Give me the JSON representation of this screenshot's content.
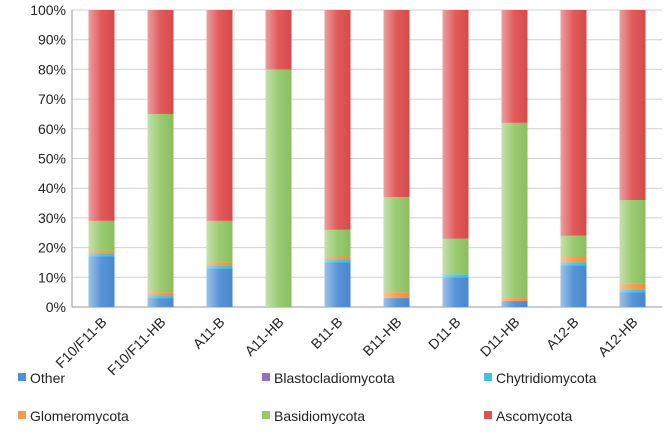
{
  "chart_data": {
    "type": "bar",
    "stacked": true,
    "percent": true,
    "title": "",
    "xlabel": "",
    "ylabel": "",
    "ylim": [
      0,
      100
    ],
    "y_ticks": [
      "0%",
      "10%",
      "20%",
      "30%",
      "40%",
      "50%",
      "60%",
      "70%",
      "80%",
      "90%",
      "100%"
    ],
    "categories": [
      "F10/F11-B",
      "F10/F11-HB",
      "A11-B",
      "A11-HB",
      "B11-B",
      "B11-HB",
      "D11-B",
      "D11-HB",
      "A12-B",
      "A12-HB"
    ],
    "grid": true,
    "legend_position": "bottom",
    "series": [
      {
        "name": "Other",
        "color": "#4f8fd6",
        "values": [
          17,
          3,
          13,
          0,
          15,
          3,
          10,
          2,
          14,
          5
        ]
      },
      {
        "name": "Blastocladiomycota",
        "color": "#8f72c2",
        "values": [
          0,
          0,
          0,
          0,
          0,
          0,
          0,
          0,
          0,
          0
        ]
      },
      {
        "name": "Chytridiomycota",
        "color": "#43c3dd",
        "values": [
          1,
          1,
          1,
          0,
          1,
          0,
          1,
          0,
          1,
          1
        ]
      },
      {
        "name": "Glomeromycota",
        "color": "#f29a4a",
        "values": [
          1,
          1,
          1,
          0,
          1,
          2,
          0,
          1,
          2,
          2
        ]
      },
      {
        "name": "Basidiomycota",
        "color": "#94c868",
        "values": [
          10,
          60,
          14,
          80,
          9,
          32,
          12,
          59,
          7,
          28
        ]
      },
      {
        "name": "Ascomycota",
        "color": "#e05050",
        "values": [
          71,
          35,
          71,
          20,
          74,
          63,
          77,
          38,
          76,
          64
        ]
      }
    ]
  }
}
